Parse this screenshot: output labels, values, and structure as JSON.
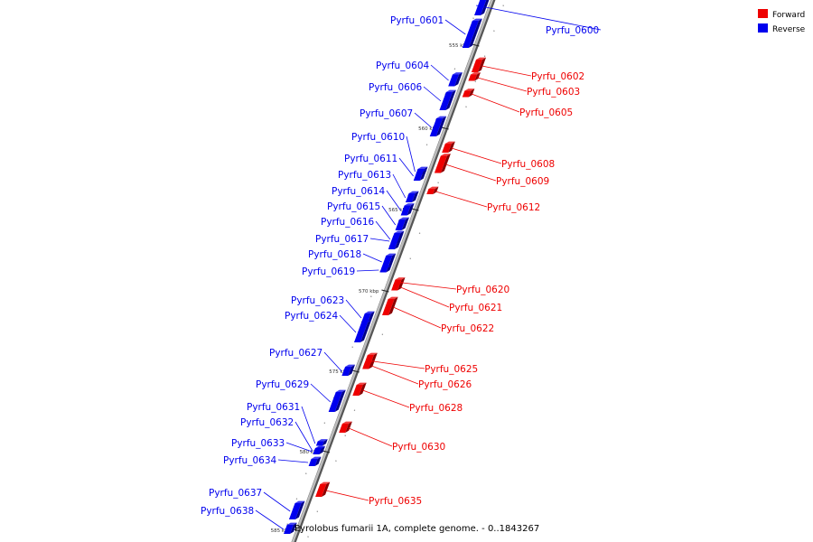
{
  "caption": "Pyrolobus fumarii 1A, complete genome. - 0..1843267",
  "legend": [
    {
      "label": "Forward",
      "color": "#ee0000"
    },
    {
      "label": "Reverse",
      "color": "#0000ee"
    }
  ],
  "ticks": [
    "555 kbp",
    "560 kbp",
    "565 kbp",
    "570 kbp",
    "575 kbp",
    "580 kbp",
    "585 kbp"
  ],
  "genes": [
    {
      "name": "Pyrfu_0600",
      "strand": "reverse"
    },
    {
      "name": "Pyrfu_0601",
      "strand": "reverse"
    },
    {
      "name": "Pyrfu_0602",
      "strand": "forward"
    },
    {
      "name": "Pyrfu_0603",
      "strand": "forward"
    },
    {
      "name": "Pyrfu_0604",
      "strand": "reverse"
    },
    {
      "name": "Pyrfu_0605",
      "strand": "forward"
    },
    {
      "name": "Pyrfu_0606",
      "strand": "reverse"
    },
    {
      "name": "Pyrfu_0607",
      "strand": "reverse"
    },
    {
      "name": "Pyrfu_0608",
      "strand": "forward"
    },
    {
      "name": "Pyrfu_0609",
      "strand": "forward"
    },
    {
      "name": "Pyrfu_0610",
      "strand": "reverse"
    },
    {
      "name": "Pyrfu_0611",
      "strand": "reverse"
    },
    {
      "name": "Pyrfu_0612",
      "strand": "forward"
    },
    {
      "name": "Pyrfu_0613",
      "strand": "reverse"
    },
    {
      "name": "Pyrfu_0614",
      "strand": "reverse"
    },
    {
      "name": "Pyrfu_0615",
      "strand": "reverse"
    },
    {
      "name": "Pyrfu_0616",
      "strand": "reverse"
    },
    {
      "name": "Pyrfu_0617",
      "strand": "reverse"
    },
    {
      "name": "Pyrfu_0618",
      "strand": "reverse"
    },
    {
      "name": "Pyrfu_0619",
      "strand": "reverse"
    },
    {
      "name": "Pyrfu_0620",
      "strand": "forward"
    },
    {
      "name": "Pyrfu_0621",
      "strand": "forward"
    },
    {
      "name": "Pyrfu_0622",
      "strand": "forward"
    },
    {
      "name": "Pyrfu_0623",
      "strand": "reverse"
    },
    {
      "name": "Pyrfu_0624",
      "strand": "reverse"
    },
    {
      "name": "Pyrfu_0625",
      "strand": "forward"
    },
    {
      "name": "Pyrfu_0626",
      "strand": "forward"
    },
    {
      "name": "Pyrfu_0627",
      "strand": "reverse"
    },
    {
      "name": "Pyrfu_0628",
      "strand": "forward"
    },
    {
      "name": "Pyrfu_0629",
      "strand": "reverse"
    },
    {
      "name": "Pyrfu_0630",
      "strand": "forward"
    },
    {
      "name": "Pyrfu_0631",
      "strand": "reverse"
    },
    {
      "name": "Pyrfu_0632",
      "strand": "reverse"
    },
    {
      "name": "Pyrfu_0633",
      "strand": "reverse"
    },
    {
      "name": "Pyrfu_0634",
      "strand": "reverse"
    },
    {
      "name": "Pyrfu_0635",
      "strand": "forward"
    },
    {
      "name": "Pyrfu_0637",
      "strand": "reverse"
    },
    {
      "name": "Pyrfu_0638",
      "strand": "reverse"
    }
  ]
}
